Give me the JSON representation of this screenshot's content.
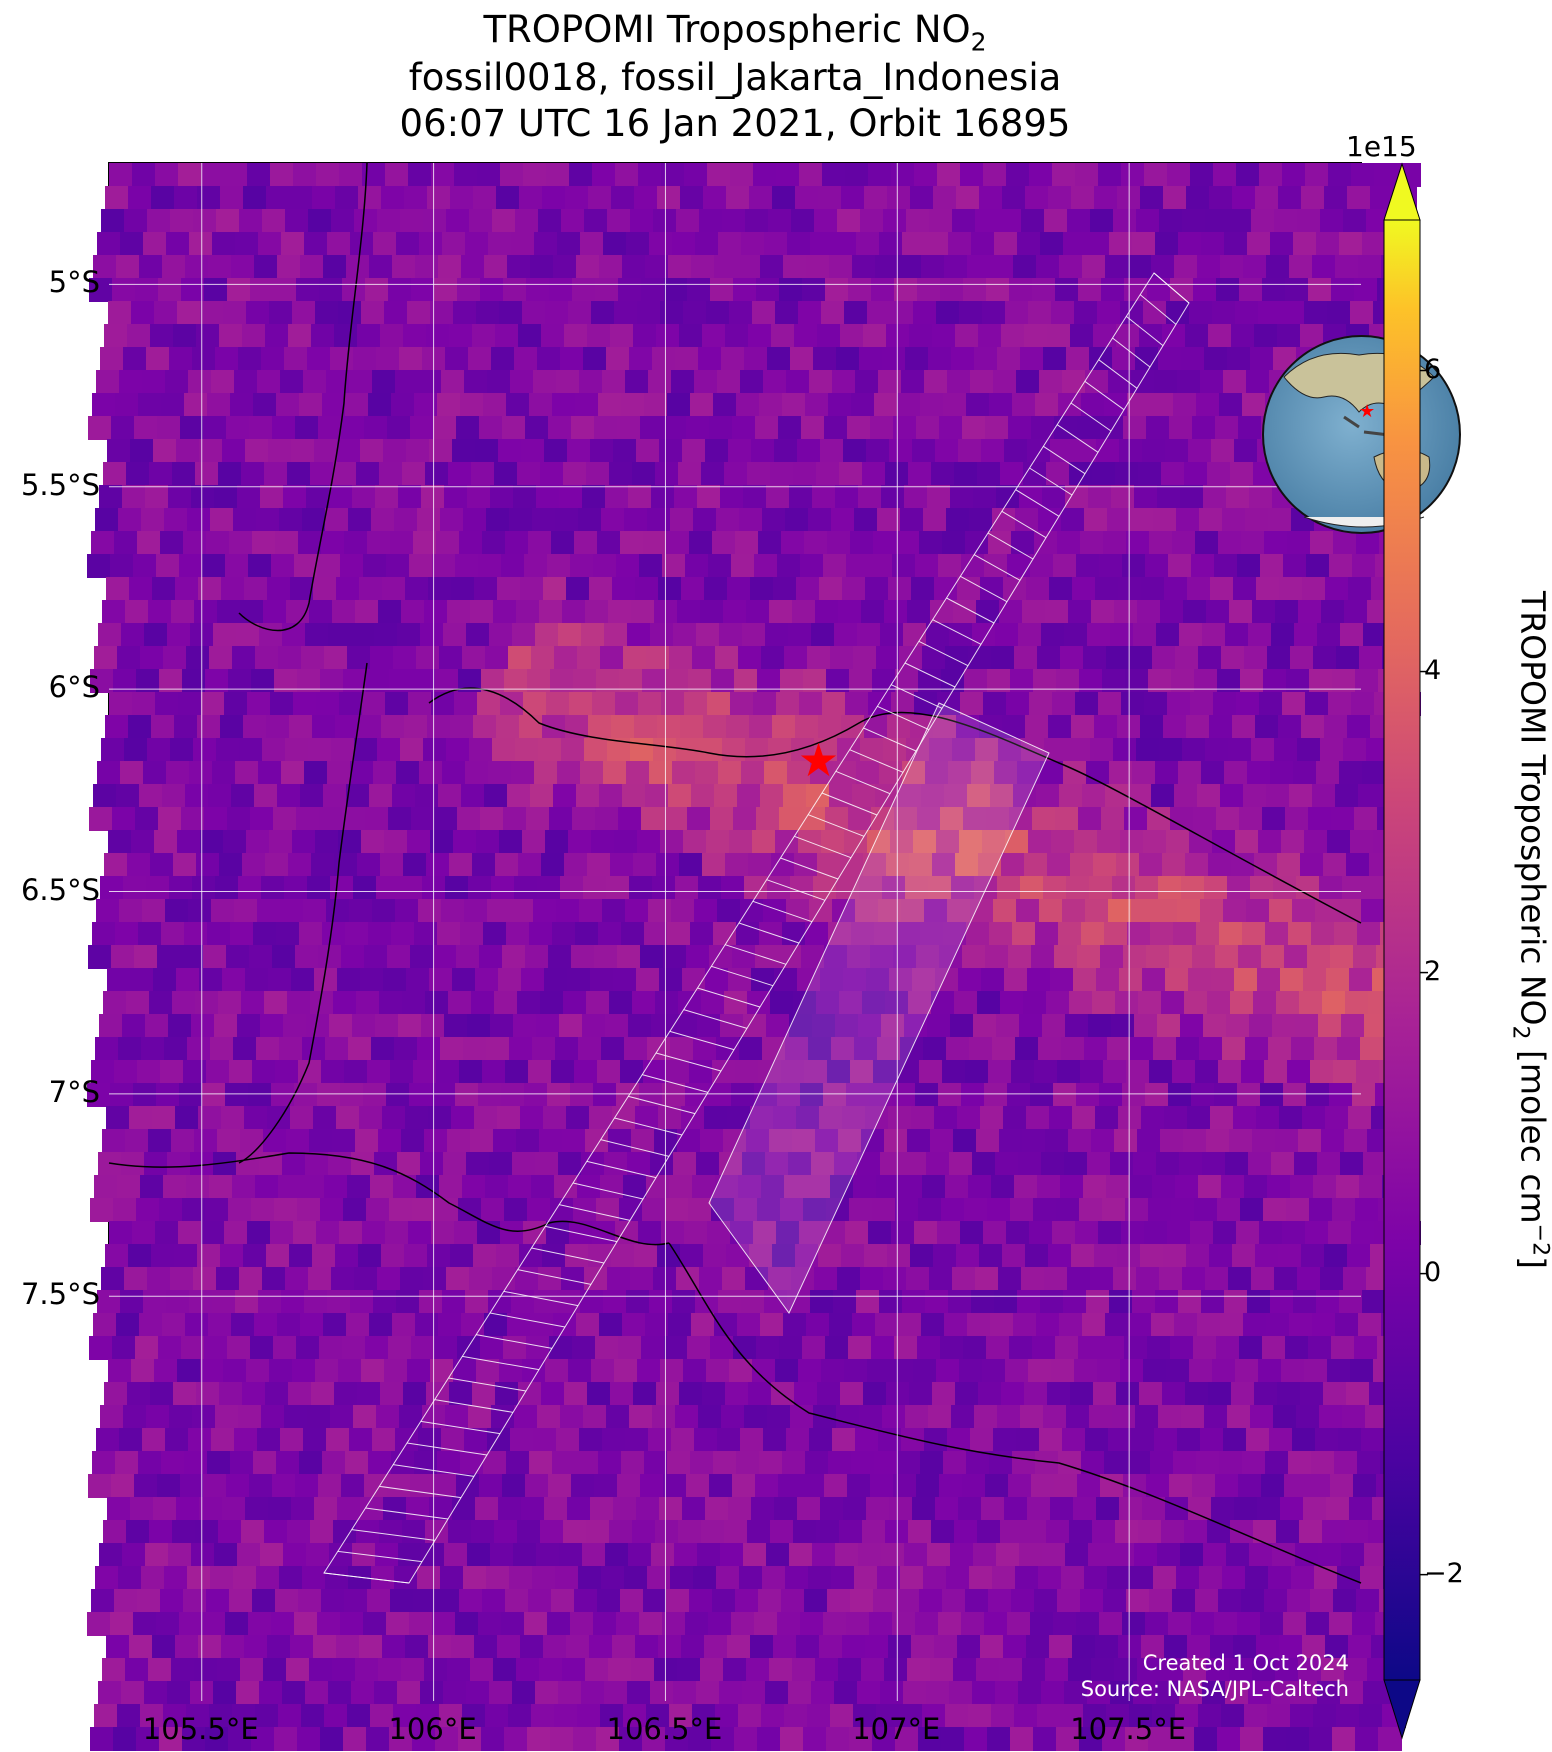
{
  "title": {
    "line1_main": "TROPOMI Tropospheric NO",
    "line1_sub": "2",
    "line2": "fossil0018, fossil_Jakarta_Indonesia",
    "line3": "06:07 UTC 16 Jan 2021, Orbit 16895"
  },
  "map": {
    "lon_range": [
      105.3,
      108.0
    ],
    "lat_range": [
      -8.5,
      -4.7
    ],
    "lat_ticks": [
      {
        "value": -5.0,
        "label": "5°S"
      },
      {
        "value": -5.5,
        "label": "5.5°S"
      },
      {
        "value": -6.0,
        "label": "6°S"
      },
      {
        "value": -6.5,
        "label": "6.5°S"
      },
      {
        "value": -7.0,
        "label": "7°S"
      },
      {
        "value": -7.5,
        "label": "7.5°S"
      }
    ],
    "lon_ticks": [
      {
        "value": 105.5,
        "label": "105.5°E"
      },
      {
        "value": 106.0,
        "label": "106°E"
      },
      {
        "value": 106.5,
        "label": "106.5°E"
      },
      {
        "value": 107.0,
        "label": "107°E"
      },
      {
        "value": 107.5,
        "label": "107.5°E"
      }
    ],
    "site": {
      "lon": 106.83,
      "lat": -6.18,
      "marker_color": "#ff0000"
    },
    "credit_line1": "Created 1 Oct 2024",
    "credit_line2": "Source: NASA/JPL-Caltech"
  },
  "colorbar": {
    "exponent_label": "1e15",
    "min": -2.7,
    "max": 7.0,
    "ticks": [
      {
        "value": -2,
        "label": "−2"
      },
      {
        "value": 0,
        "label": "0"
      },
      {
        "value": 2,
        "label": "2"
      },
      {
        "value": 4,
        "label": "4"
      },
      {
        "value": 6,
        "label": "6"
      }
    ],
    "label_main": "TROPOMI Tropospheric NO",
    "label_sub": "2",
    "label_unit": " [molec cm",
    "label_sup": "−2",
    "label_close": "]",
    "colormap": "plasma"
  }
}
